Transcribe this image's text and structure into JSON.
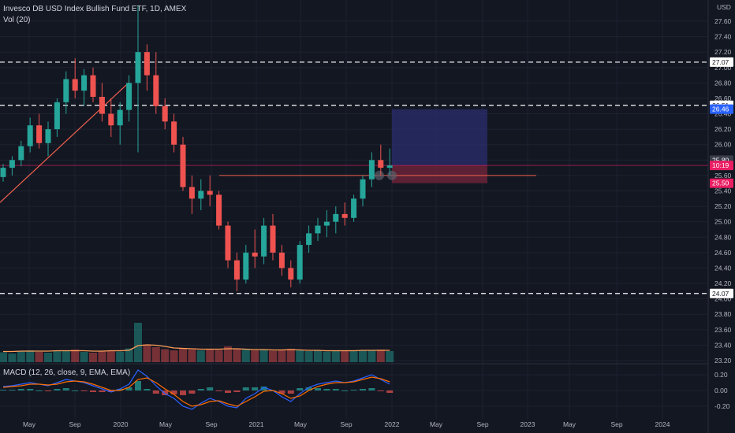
{
  "header": {
    "title": "Invesco DB USD Index Bullish Fund ETF, 1D, AMEX",
    "vol_label": "Vol (20)",
    "currency": "USD"
  },
  "macd": {
    "label": "MACD (12, 26, close, 9, EMA, EMA)",
    "ticks": [
      "0.20",
      "0.00",
      "-0.20"
    ]
  },
  "colors": {
    "background": "#131722",
    "grid": "#1e2230",
    "up": "#26a69a",
    "down": "#ef5350",
    "volume_ma": "#ff9f57",
    "trendline": "#f0614e",
    "macd_line": "#2962ff",
    "signal_line": "#ff6d00",
    "target_zone": "#2a2e6e",
    "stop_zone": "#6b2338"
  },
  "chart_data": {
    "type": "candlestick",
    "price_ticks": [
      "27.60",
      "27.40",
      "27.20",
      "27.00",
      "26.80",
      "26.60",
      "26.40",
      "26.20",
      "26.00",
      "25.80",
      "25.60",
      "25.40",
      "25.20",
      "25.00",
      "24.80",
      "24.60",
      "24.40",
      "24.20",
      "24.00",
      "23.80",
      "23.60",
      "23.40",
      "23.20"
    ],
    "x_ticks": [
      "May",
      "Sep",
      "2020",
      "May",
      "Sep",
      "2021",
      "May",
      "Sep",
      "2022",
      "May",
      "Sep",
      "2023",
      "May",
      "Sep",
      "2024"
    ],
    "horizontal_levels": [
      {
        "label": "27.07",
        "value": 27.07,
        "style": "dashed"
      },
      {
        "label": "26.51",
        "value": 26.51,
        "style": "dashed"
      },
      {
        "label": "24.07",
        "value": 24.07,
        "style": "dashed"
      }
    ],
    "price_badges": [
      {
        "label": "26.46",
        "value": 26.46,
        "color": "#2962ff"
      },
      {
        "label": "25.80",
        "value": 25.8,
        "color": "#3a3e4a"
      },
      {
        "label": "10:19",
        "value": 25.73,
        "color": "#e91e63"
      },
      {
        "label": "25.50",
        "value": 25.5,
        "color": "#e91e63"
      }
    ],
    "trade_box": {
      "entry": 25.73,
      "target": 26.46,
      "stop": 25.5
    },
    "support_line": 25.6,
    "series": [
      {
        "t": 0,
        "o": 25.58,
        "h": 25.75,
        "l": 25.52,
        "c": 25.7
      },
      {
        "t": 0.02,
        "o": 25.7,
        "h": 25.85,
        "l": 25.6,
        "c": 25.8
      },
      {
        "t": 0.04,
        "o": 25.8,
        "h": 26.05,
        "l": 25.72,
        "c": 25.98
      },
      {
        "t": 0.06,
        "o": 25.98,
        "h": 26.35,
        "l": 25.9,
        "c": 26.25
      },
      {
        "t": 0.08,
        "o": 26.25,
        "h": 26.4,
        "l": 25.95,
        "c": 26.02
      },
      {
        "t": 0.1,
        "o": 26.02,
        "h": 26.3,
        "l": 25.85,
        "c": 26.2
      },
      {
        "t": 0.12,
        "o": 26.2,
        "h": 26.6,
        "l": 26.1,
        "c": 26.55
      },
      {
        "t": 0.14,
        "o": 26.55,
        "h": 26.95,
        "l": 26.4,
        "c": 26.85
      },
      {
        "t": 0.16,
        "o": 26.85,
        "h": 27.12,
        "l": 26.6,
        "c": 26.7
      },
      {
        "t": 0.18,
        "o": 26.7,
        "h": 26.98,
        "l": 26.5,
        "c": 26.9
      },
      {
        "t": 0.2,
        "o": 26.9,
        "h": 27.0,
        "l": 26.55,
        "c": 26.62
      },
      {
        "t": 0.22,
        "o": 26.62,
        "h": 26.8,
        "l": 26.3,
        "c": 26.4
      },
      {
        "t": 0.24,
        "o": 26.4,
        "h": 26.6,
        "l": 26.1,
        "c": 26.25
      },
      {
        "t": 0.26,
        "o": 26.25,
        "h": 26.55,
        "l": 26.0,
        "c": 26.45
      },
      {
        "t": 0.28,
        "o": 26.45,
        "h": 26.9,
        "l": 26.3,
        "c": 26.8
      },
      {
        "t": 0.3,
        "o": 26.8,
        "h": 27.8,
        "l": 25.9,
        "c": 27.2
      },
      {
        "t": 0.32,
        "o": 27.2,
        "h": 27.3,
        "l": 26.7,
        "c": 26.9
      },
      {
        "t": 0.34,
        "o": 26.9,
        "h": 27.2,
        "l": 26.4,
        "c": 26.5
      },
      {
        "t": 0.36,
        "o": 26.5,
        "h": 26.6,
        "l": 26.2,
        "c": 26.3
      },
      {
        "t": 0.38,
        "o": 26.3,
        "h": 26.4,
        "l": 25.9,
        "c": 26.0
      },
      {
        "t": 0.4,
        "o": 26.0,
        "h": 26.1,
        "l": 25.4,
        "c": 25.45
      },
      {
        "t": 0.42,
        "o": 25.45,
        "h": 25.6,
        "l": 25.1,
        "c": 25.3
      },
      {
        "t": 0.44,
        "o": 25.3,
        "h": 25.55,
        "l": 25.15,
        "c": 25.4
      },
      {
        "t": 0.46,
        "o": 25.4,
        "h": 25.6,
        "l": 25.2,
        "c": 25.35
      },
      {
        "t": 0.48,
        "o": 25.35,
        "h": 25.4,
        "l": 24.9,
        "c": 24.95
      },
      {
        "t": 0.5,
        "o": 24.95,
        "h": 25.0,
        "l": 24.4,
        "c": 24.5
      },
      {
        "t": 0.52,
        "o": 24.5,
        "h": 24.6,
        "l": 24.1,
        "c": 24.25
      },
      {
        "t": 0.54,
        "o": 24.25,
        "h": 24.7,
        "l": 24.2,
        "c": 24.6
      },
      {
        "t": 0.56,
        "o": 24.6,
        "h": 24.9,
        "l": 24.4,
        "c": 24.55
      },
      {
        "t": 0.58,
        "o": 24.55,
        "h": 25.05,
        "l": 24.45,
        "c": 24.95
      },
      {
        "t": 0.6,
        "o": 24.95,
        "h": 25.1,
        "l": 24.5,
        "c": 24.6
      },
      {
        "t": 0.62,
        "o": 24.6,
        "h": 24.7,
        "l": 24.3,
        "c": 24.4
      },
      {
        "t": 0.64,
        "o": 24.4,
        "h": 24.5,
        "l": 24.15,
        "c": 24.25
      },
      {
        "t": 0.66,
        "o": 24.25,
        "h": 24.75,
        "l": 24.2,
        "c": 24.7
      },
      {
        "t": 0.68,
        "o": 24.7,
        "h": 24.95,
        "l": 24.6,
        "c": 24.85
      },
      {
        "t": 0.7,
        "o": 24.85,
        "h": 25.05,
        "l": 24.75,
        "c": 24.95
      },
      {
        "t": 0.72,
        "o": 24.95,
        "h": 25.15,
        "l": 24.8,
        "c": 25.0
      },
      {
        "t": 0.74,
        "o": 25.0,
        "h": 25.2,
        "l": 24.85,
        "c": 25.1
      },
      {
        "t": 0.76,
        "o": 25.1,
        "h": 25.25,
        "l": 24.95,
        "c": 25.05
      },
      {
        "t": 0.78,
        "o": 25.05,
        "h": 25.35,
        "l": 25.0,
        "c": 25.3
      },
      {
        "t": 0.8,
        "o": 25.3,
        "h": 25.6,
        "l": 25.2,
        "c": 25.55
      },
      {
        "t": 0.82,
        "o": 25.55,
        "h": 25.9,
        "l": 25.45,
        "c": 25.8
      },
      {
        "t": 0.84,
        "o": 25.8,
        "h": 26.0,
        "l": 25.6,
        "c": 25.7
      },
      {
        "t": 0.86,
        "o": 25.7,
        "h": 25.95,
        "l": 25.6,
        "c": 25.73
      }
    ],
    "volume": [
      0.25,
      0.22,
      0.28,
      0.3,
      0.26,
      0.24,
      0.3,
      0.28,
      0.32,
      0.26,
      0.24,
      0.28,
      0.3,
      0.27,
      0.35,
      1.0,
      0.45,
      0.38,
      0.33,
      0.3,
      0.36,
      0.32,
      0.3,
      0.34,
      0.31,
      0.4,
      0.35,
      0.33,
      0.3,
      0.32,
      0.29,
      0.31,
      0.34,
      0.3,
      0.28,
      0.29,
      0.27,
      0.3,
      0.28,
      0.29,
      0.31,
      0.3,
      0.32,
      0.28
    ],
    "volume_ma": [
      0.27,
      0.27,
      0.28,
      0.28,
      0.28,
      0.28,
      0.29,
      0.29,
      0.29,
      0.29,
      0.28,
      0.28,
      0.29,
      0.29,
      0.3,
      0.42,
      0.44,
      0.43,
      0.4,
      0.36,
      0.35,
      0.34,
      0.33,
      0.33,
      0.33,
      0.34,
      0.34,
      0.33,
      0.32,
      0.32,
      0.31,
      0.31,
      0.32,
      0.31,
      0.3,
      0.3,
      0.29,
      0.29,
      0.29,
      0.29,
      0.3,
      0.3,
      0.3,
      0.3
    ],
    "macd_values": [
      0.05,
      0.06,
      0.08,
      0.1,
      0.08,
      0.06,
      0.1,
      0.14,
      0.12,
      0.1,
      0.06,
      0.02,
      -0.02,
      0.02,
      0.08,
      0.26,
      0.18,
      0.06,
      -0.04,
      -0.1,
      -0.2,
      -0.24,
      -0.16,
      -0.1,
      -0.14,
      -0.2,
      -0.22,
      -0.1,
      -0.04,
      0.04,
      0.0,
      -0.08,
      -0.14,
      -0.04,
      0.04,
      0.08,
      0.1,
      0.12,
      0.1,
      0.12,
      0.16,
      0.2,
      0.14,
      0.08
    ],
    "signal_values": [
      0.04,
      0.05,
      0.06,
      0.08,
      0.08,
      0.07,
      0.08,
      0.11,
      0.12,
      0.11,
      0.08,
      0.04,
      0.0,
      0.0,
      0.04,
      0.14,
      0.16,
      0.1,
      0.02,
      -0.05,
      -0.14,
      -0.2,
      -0.18,
      -0.14,
      -0.13,
      -0.17,
      -0.2,
      -0.14,
      -0.08,
      -0.01,
      0.0,
      -0.04,
      -0.1,
      -0.07,
      0.0,
      0.05,
      0.08,
      0.1,
      0.1,
      0.11,
      0.14,
      0.17,
      0.15,
      0.11
    ]
  }
}
